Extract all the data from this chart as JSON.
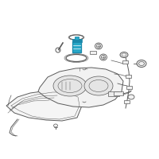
{
  "bg_color": "#ffffff",
  "line_color": "#5a5a5a",
  "highlight_color": "#29a8c8",
  "highlight_dark": "#1a88aa",
  "fig_size": [
    2.0,
    2.0
  ],
  "dpi": 100
}
